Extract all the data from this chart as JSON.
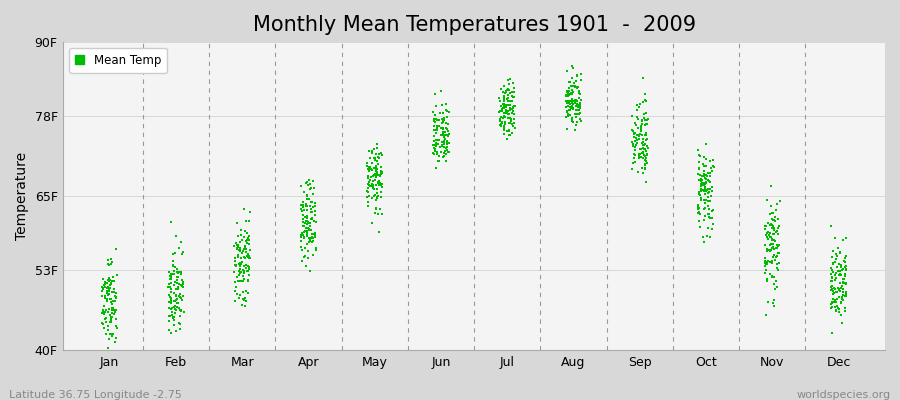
{
  "title": "Monthly Mean Temperatures 1901  -  2009",
  "ylabel": "Temperature",
  "ytick_labels": [
    "40F",
    "53F",
    "65F",
    "78F",
    "90F"
  ],
  "ytick_values": [
    40,
    53,
    65,
    78,
    90
  ],
  "ylim": [
    40,
    90
  ],
  "xlim": [
    0.3,
    12.7
  ],
  "xtick_positions": [
    1,
    2,
    3,
    4,
    5,
    6,
    7,
    8,
    9,
    10,
    11,
    12
  ],
  "xtick_labels": [
    "Jan",
    "Feb",
    "Mar",
    "Apr",
    "May",
    "Jun",
    "Jul",
    "Aug",
    "Sep",
    "Oct",
    "Nov",
    "Dec"
  ],
  "vline_positions": [
    1.5,
    2.5,
    3.5,
    4.5,
    5.5,
    6.5,
    7.5,
    8.5,
    9.5,
    10.5,
    11.5
  ],
  "dot_color": "#00bb00",
  "dot_size": 3,
  "legend_label": "Mean Temp",
  "legend_marker_color": "#00bb00",
  "fig_bg_color": "#d8d8d8",
  "plot_bg_color": "#f4f4f4",
  "subtitle_left": "Latitude 36.75 Longitude -2.75",
  "subtitle_right": "worldspecies.org",
  "title_fontsize": 15,
  "axis_fontsize": 9,
  "label_fontsize": 10,
  "monthly_base_F": [
    48.5,
    50.0,
    54.5,
    61.0,
    67.5,
    74.5,
    79.5,
    80.5,
    74.0,
    66.0,
    57.0,
    51.0
  ],
  "monthly_spread": [
    3.5,
    3.8,
    3.5,
    3.2,
    3.0,
    2.8,
    2.5,
    2.5,
    3.0,
    3.5,
    3.8,
    3.5
  ],
  "x_spread": 0.12
}
